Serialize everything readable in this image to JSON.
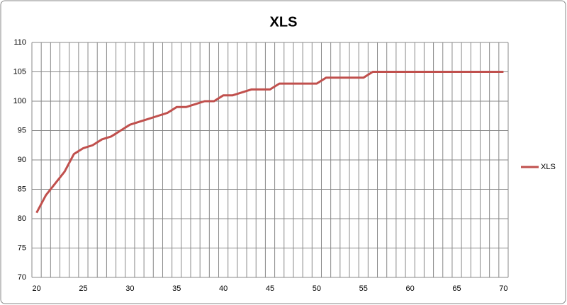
{
  "chart_data": {
    "type": "line",
    "title": "XLS",
    "categories": [
      "20",
      null,
      null,
      null,
      null,
      "25",
      null,
      null,
      null,
      null,
      "30",
      null,
      null,
      null,
      null,
      "35",
      null,
      null,
      null,
      null,
      "40",
      null,
      null,
      null,
      null,
      "45",
      null,
      null,
      null,
      null,
      "50",
      null,
      null,
      null,
      null,
      "55",
      null,
      null,
      null,
      null,
      "60",
      null,
      null,
      null,
      null,
      "65",
      null,
      null,
      null,
      null,
      "70"
    ],
    "series": [
      {
        "name": "XLS",
        "color": "#c0504d",
        "values": [
          81,
          84,
          86,
          88,
          91,
          92,
          92.5,
          93.5,
          94,
          95,
          96,
          96.5,
          97,
          97.5,
          98,
          99,
          99,
          99.5,
          100,
          100,
          101,
          101,
          101.5,
          102,
          102,
          102,
          103,
          103,
          103,
          103,
          103,
          104,
          104,
          104,
          104,
          104,
          105,
          105,
          105,
          105,
          105,
          105,
          105,
          105,
          105,
          105,
          105,
          105,
          105,
          105,
          105
        ]
      }
    ],
    "ylim": [
      70,
      110
    ],
    "yticks": [
      70,
      75,
      80,
      85,
      90,
      95,
      100,
      105,
      110
    ],
    "grid": true,
    "legend": "right"
  }
}
